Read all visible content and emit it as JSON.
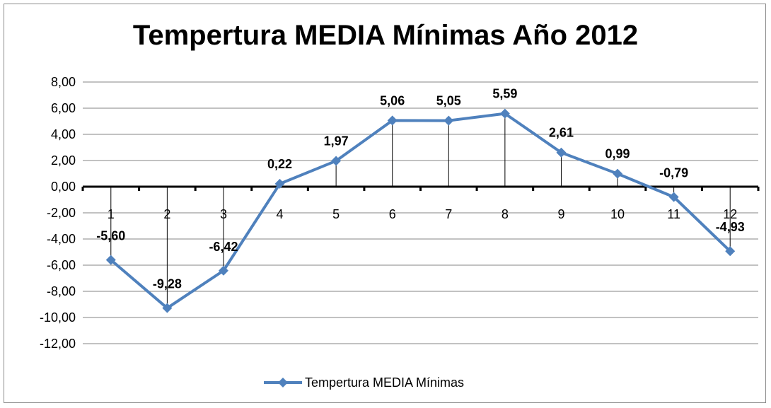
{
  "chart_data": {
    "type": "line",
    "title": "Tempertura MEDIA Mínimas Año 2012",
    "categories": [
      "1",
      "2",
      "3",
      "4",
      "5",
      "6",
      "7",
      "8",
      "9",
      "10",
      "11",
      "12"
    ],
    "series": [
      {
        "name": "Tempertura MEDIA Mínimas",
        "values": [
          -5.6,
          -9.28,
          -6.42,
          0.22,
          1.97,
          5.06,
          5.05,
          5.59,
          2.61,
          0.99,
          -0.79,
          -4.93
        ],
        "labels": [
          "-5,60",
          "-9,28",
          "-6,42",
          "0,22",
          "1,97",
          "5,06",
          "5,05",
          "5,59",
          "2,61",
          "0,99",
          "-0,79",
          "-4,93"
        ],
        "color": "#4f81bd"
      }
    ],
    "ylim": [
      -12,
      8
    ],
    "yticks": [
      8,
      6,
      4,
      2,
      0,
      -2,
      -4,
      -6,
      -8,
      -10,
      -12
    ],
    "ytick_labels": [
      "8,00",
      "6,00",
      "4,00",
      "2,00",
      "0,00",
      "-2,00",
      "-4,00",
      "-6,00",
      "-8,00",
      "-10,00",
      "-12,00"
    ],
    "grid": true,
    "drop_lines": true,
    "legend_position": "bottom",
    "xlabel": "",
    "ylabel": ""
  }
}
